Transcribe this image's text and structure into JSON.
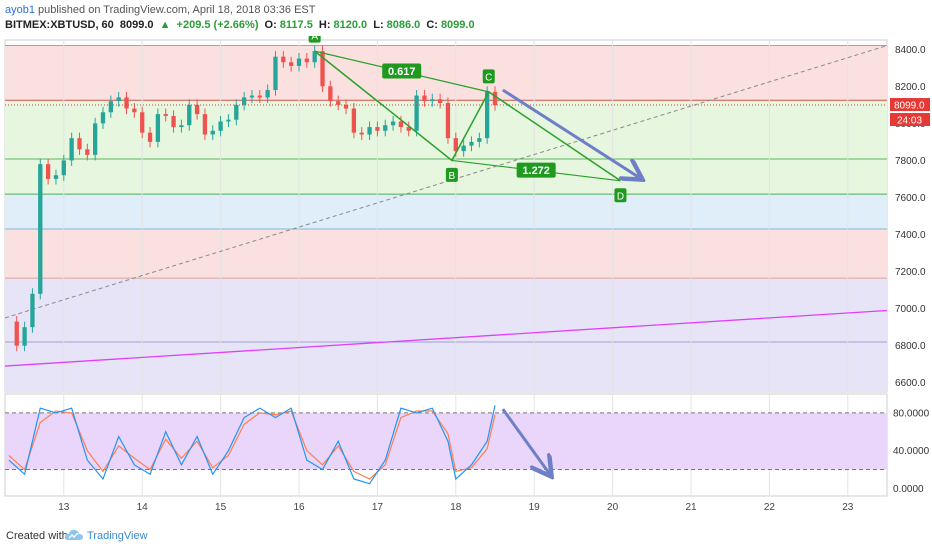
{
  "header": {
    "author": "ayob1",
    "published": "published on TradingView.com, April 18, 2018 03:36 EST",
    "symbol": "BITMEX:XBTUSD, 60",
    "last": "8099.0",
    "change": "+209.5 (+2.66%)",
    "open_label": "O:",
    "open": "8117.5",
    "high_label": "H:",
    "high": "8120.0",
    "low_label": "L:",
    "low": "8086.0",
    "close_label": "C:",
    "close": "8099.0"
  },
  "footer": {
    "created_with": "Created with",
    "brand": "TradingView"
  },
  "colors": {
    "up": "#26a69a",
    "down": "#ef5350",
    "pattern": "#2ba02b",
    "arrow": "#6f7fc6",
    "trend_magenta": "#e040fb",
    "stoch_k": "#2196f3",
    "stoch_d": "#ff7f50",
    "zone_red": "#fbe0e0",
    "zone_green": "#e6f6df",
    "zone_blue": "#dfeef8",
    "zone_purple": "#e6e4f6"
  },
  "chart_data": {
    "type": "candlestick",
    "ylim": [
      6550,
      8450
    ],
    "y_ticks": [
      {
        "value": 8400,
        "label": "8400.0"
      },
      {
        "value": 8200,
        "label": "8200.0"
      },
      {
        "value": 8000,
        "label": "8000.0"
      },
      {
        "value": 7800,
        "label": "7800.0"
      },
      {
        "value": 7600,
        "label": "7600.0"
      },
      {
        "value": 7400,
        "label": "7400.0"
      },
      {
        "value": 7200,
        "label": "7200.0"
      },
      {
        "value": 7000,
        "label": "7000.0"
      },
      {
        "value": 6800,
        "label": "6800.0"
      },
      {
        "value": 6600,
        "label": "6600.0"
      }
    ],
    "x_ticks": [
      "13",
      "14",
      "15",
      "16",
      "17",
      "18",
      "19",
      "20",
      "21",
      "22",
      "23"
    ],
    "xlim": [
      12.25,
      23.5
    ],
    "price_label": "8099.0",
    "countdown_label": "24:03",
    "fib_levels": [
      8420,
      8125,
      7808,
      7618,
      7430,
      7165,
      6820
    ],
    "close_series": [
      [
        12.3,
        6930
      ],
      [
        12.4,
        6800
      ],
      [
        12.5,
        6900
      ],
      [
        12.6,
        7080
      ],
      [
        12.7,
        7780
      ],
      [
        12.8,
        7700
      ],
      [
        12.9,
        7720
      ],
      [
        13.0,
        7800
      ],
      [
        13.1,
        7920
      ],
      [
        13.2,
        7860
      ],
      [
        13.3,
        7830
      ],
      [
        13.4,
        8000
      ],
      [
        13.5,
        8060
      ],
      [
        13.6,
        8120
      ],
      [
        13.7,
        8140
      ],
      [
        13.8,
        8080
      ],
      [
        13.9,
        8060
      ],
      [
        14.0,
        7950
      ],
      [
        14.1,
        7900
      ],
      [
        14.2,
        8050
      ],
      [
        14.3,
        8040
      ],
      [
        14.4,
        7980
      ],
      [
        14.5,
        7990
      ],
      [
        14.6,
        8100
      ],
      [
        14.7,
        8050
      ],
      [
        14.8,
        7940
      ],
      [
        14.9,
        7960
      ],
      [
        15.0,
        8010
      ],
      [
        15.1,
        8020
      ],
      [
        15.2,
        8100
      ],
      [
        15.3,
        8140
      ],
      [
        15.4,
        8150
      ],
      [
        15.5,
        8140
      ],
      [
        15.6,
        8180
      ],
      [
        15.7,
        8360
      ],
      [
        15.8,
        8330
      ],
      [
        15.9,
        8310
      ],
      [
        16.0,
        8350
      ],
      [
        16.1,
        8330
      ],
      [
        16.2,
        8390
      ],
      [
        16.3,
        8200
      ],
      [
        16.4,
        8120
      ],
      [
        16.5,
        8100
      ],
      [
        16.6,
        8080
      ],
      [
        16.7,
        7950
      ],
      [
        16.8,
        7940
      ],
      [
        16.9,
        7980
      ],
      [
        17.0,
        7960
      ],
      [
        17.1,
        7990
      ],
      [
        17.2,
        8010
      ],
      [
        17.3,
        7980
      ],
      [
        17.4,
        7960
      ],
      [
        17.5,
        8150
      ],
      [
        17.6,
        8120
      ],
      [
        17.7,
        8130
      ],
      [
        17.8,
        8110
      ],
      [
        17.9,
        7920
      ],
      [
        18.0,
        7850
      ],
      [
        18.1,
        7880
      ],
      [
        18.2,
        7900
      ],
      [
        18.3,
        7920
      ],
      [
        18.4,
        8170
      ],
      [
        18.5,
        8099
      ]
    ],
    "pattern": {
      "points": [
        {
          "label": "A",
          "x": 16.2,
          "y": 8390
        },
        {
          "label": "B",
          "x": 17.95,
          "y": 7800
        },
        {
          "label": "C",
          "x": 18.42,
          "y": 8170
        },
        {
          "label": "D",
          "x": 20.1,
          "y": 7690
        }
      ],
      "ratios": [
        {
          "label": "0.617"
        },
        {
          "label": "1.272"
        }
      ]
    },
    "trendlines": {
      "dashed": [
        [
          12.25,
          6950
        ],
        [
          23.5,
          8420
        ]
      ],
      "magenta": [
        [
          12.25,
          6690
        ],
        [
          23.5,
          6990
        ]
      ]
    },
    "forecast_arrow": [
      [
        18.6,
        8180
      ],
      [
        20.35,
        7705
      ]
    ],
    "stochastic": {
      "ylim": [
        -8,
        100
      ],
      "y_ticks": [
        {
          "value": 80,
          "label": "80.0000"
        },
        {
          "value": 40,
          "label": "40.0000"
        },
        {
          "value": 0,
          "label": "0.0000"
        }
      ],
      "band": [
        20,
        80
      ],
      "k": [
        [
          12.3,
          30
        ],
        [
          12.5,
          15
        ],
        [
          12.7,
          85
        ],
        [
          12.9,
          80
        ],
        [
          13.1,
          85
        ],
        [
          13.3,
          30
        ],
        [
          13.5,
          10
        ],
        [
          13.7,
          55
        ],
        [
          13.9,
          25
        ],
        [
          14.1,
          15
        ],
        [
          14.3,
          60
        ],
        [
          14.5,
          25
        ],
        [
          14.7,
          55
        ],
        [
          14.9,
          15
        ],
        [
          15.1,
          40
        ],
        [
          15.3,
          75
        ],
        [
          15.5,
          85
        ],
        [
          15.7,
          75
        ],
        [
          15.9,
          85
        ],
        [
          16.1,
          30
        ],
        [
          16.3,
          20
        ],
        [
          16.5,
          50
        ],
        [
          16.7,
          10
        ],
        [
          16.9,
          5
        ],
        [
          17.1,
          30
        ],
        [
          17.3,
          85
        ],
        [
          17.5,
          80
        ],
        [
          17.7,
          85
        ],
        [
          17.9,
          50
        ],
        [
          18.0,
          10
        ],
        [
          18.2,
          25
        ],
        [
          18.4,
          50
        ],
        [
          18.5,
          88
        ]
      ],
      "d": [
        [
          12.3,
          35
        ],
        [
          12.5,
          20
        ],
        [
          12.7,
          70
        ],
        [
          12.9,
          82
        ],
        [
          13.1,
          80
        ],
        [
          13.3,
          40
        ],
        [
          13.5,
          18
        ],
        [
          13.7,
          45
        ],
        [
          13.9,
          32
        ],
        [
          14.1,
          20
        ],
        [
          14.3,
          52
        ],
        [
          14.5,
          32
        ],
        [
          14.7,
          50
        ],
        [
          14.9,
          22
        ],
        [
          15.1,
          35
        ],
        [
          15.3,
          68
        ],
        [
          15.5,
          80
        ],
        [
          15.7,
          78
        ],
        [
          15.9,
          82
        ],
        [
          16.1,
          40
        ],
        [
          16.3,
          25
        ],
        [
          16.5,
          45
        ],
        [
          16.7,
          18
        ],
        [
          16.9,
          10
        ],
        [
          17.1,
          25
        ],
        [
          17.3,
          75
        ],
        [
          17.5,
          82
        ],
        [
          17.7,
          82
        ],
        [
          17.9,
          58
        ],
        [
          18.0,
          18
        ],
        [
          18.2,
          22
        ],
        [
          18.4,
          42
        ],
        [
          18.5,
          78
        ]
      ],
      "arrow": [
        [
          18.6,
          84
        ],
        [
          19.2,
          15
        ]
      ]
    }
  }
}
